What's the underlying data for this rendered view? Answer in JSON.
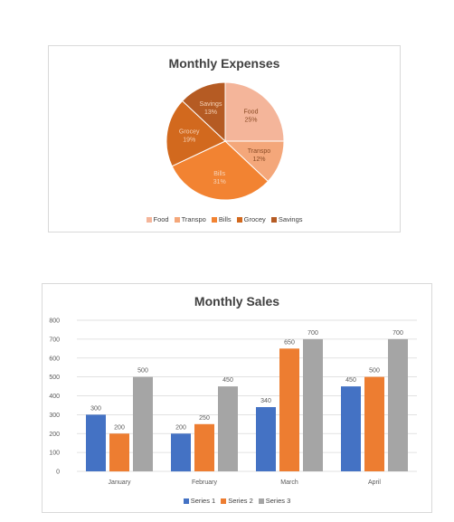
{
  "chart_data": [
    {
      "type": "pie",
      "title": "Monthly Expenses",
      "categories": [
        "Food",
        "Transpo",
        "Bills",
        "Grocey",
        "Savings"
      ],
      "values": [
        25,
        12,
        31,
        19,
        13
      ],
      "value_labels": [
        "25%",
        "12%",
        "31%",
        "19%",
        "13%"
      ],
      "colors": [
        "#f4b59a",
        "#f4a77a",
        "#f28332",
        "#d2691e",
        "#b55b23"
      ],
      "legend": "bottom"
    },
    {
      "type": "bar",
      "title": "Monthly Sales",
      "categories": [
        "January",
        "February",
        "March",
        "April"
      ],
      "series": [
        {
          "name": "Series 1",
          "values": [
            300,
            200,
            340,
            450
          ],
          "color": "#4472c4"
        },
        {
          "name": "Series 2",
          "values": [
            200,
            250,
            650,
            500
          ],
          "color": "#ed7d31"
        },
        {
          "name": "Series 3",
          "values": [
            500,
            450,
            700,
            700
          ],
          "color": "#a5a5a5"
        }
      ],
      "ylim": [
        0,
        800
      ],
      "yticks": [
        0,
        100,
        200,
        300,
        400,
        500,
        600,
        700,
        800
      ],
      "grid": true,
      "legend": "bottom"
    }
  ]
}
